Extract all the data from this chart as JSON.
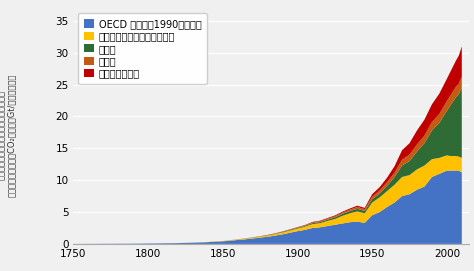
{
  "xlim": [
    1750,
    2015
  ],
  "ylim": [
    0,
    37
  ],
  "yticks": [
    0,
    5,
    10,
    15,
    20,
    25,
    30,
    35
  ],
  "xticks": [
    1750,
    1800,
    1850,
    1900,
    1950,
    2000
  ],
  "legend_labels": [
    "OECD 加盟国（1990年時点）",
    "移行経済国（旧ソ連圏など）",
    "アジア",
    "中南米",
    "中東・アフリカ"
  ],
  "colors": [
    "#4472c4",
    "#ffc000",
    "#2e6b35",
    "#c55a11",
    "#c00000"
  ],
  "bg_color": "#f0f0f0",
  "grid_color": "#ffffff",
  "ylabel_line1": "化石燃料の採掘・燃料・セメント生産、",
  "ylabel_line2": "他の土地利用からのCO₂排出量（Gt/年）　森林と",
  "years": [
    1750,
    1755,
    1760,
    1765,
    1770,
    1775,
    1780,
    1785,
    1790,
    1795,
    1800,
    1805,
    1810,
    1815,
    1820,
    1825,
    1830,
    1835,
    1840,
    1845,
    1850,
    1855,
    1860,
    1865,
    1870,
    1875,
    1880,
    1885,
    1890,
    1895,
    1900,
    1905,
    1910,
    1915,
    1920,
    1925,
    1930,
    1935,
    1940,
    1945,
    1950,
    1955,
    1960,
    1965,
    1970,
    1975,
    1980,
    1985,
    1990,
    1995,
    2000,
    2002,
    2004,
    2006,
    2008,
    2010
  ],
  "oecd": [
    0.01,
    0.01,
    0.02,
    0.02,
    0.03,
    0.03,
    0.04,
    0.04,
    0.05,
    0.06,
    0.07,
    0.08,
    0.1,
    0.11,
    0.13,
    0.16,
    0.19,
    0.23,
    0.28,
    0.34,
    0.4,
    0.5,
    0.62,
    0.72,
    0.85,
    0.98,
    1.12,
    1.3,
    1.5,
    1.75,
    2.0,
    2.2,
    2.5,
    2.6,
    2.8,
    3.0,
    3.2,
    3.4,
    3.5,
    3.3,
    4.5,
    5.0,
    5.8,
    6.5,
    7.5,
    7.8,
    8.5,
    9.0,
    10.5,
    11.0,
    11.5,
    11.5,
    11.5,
    11.5,
    11.5,
    11.2
  ],
  "transition": [
    0.0,
    0.0,
    0.0,
    0.0,
    0.0,
    0.0,
    0.0,
    0.0,
    0.0,
    0.0,
    0.0,
    0.0,
    0.0,
    0.01,
    0.01,
    0.02,
    0.02,
    0.03,
    0.04,
    0.04,
    0.05,
    0.06,
    0.08,
    0.1,
    0.12,
    0.16,
    0.2,
    0.25,
    0.3,
    0.35,
    0.4,
    0.5,
    0.6,
    0.65,
    0.8,
    0.9,
    1.2,
    1.4,
    1.6,
    1.5,
    2.0,
    2.3,
    2.5,
    2.8,
    3.0,
    3.0,
    3.2,
    3.3,
    2.8,
    2.5,
    2.4,
    2.3,
    2.3,
    2.3,
    2.2,
    2.3
  ],
  "asia": [
    0.0,
    0.0,
    0.0,
    0.0,
    0.0,
    0.0,
    0.0,
    0.0,
    0.0,
    0.0,
    0.0,
    0.0,
    0.0,
    0.0,
    0.0,
    0.0,
    0.0,
    0.0,
    0.0,
    0.01,
    0.01,
    0.01,
    0.02,
    0.02,
    0.03,
    0.04,
    0.05,
    0.06,
    0.08,
    0.09,
    0.1,
    0.12,
    0.15,
    0.17,
    0.2,
    0.25,
    0.3,
    0.35,
    0.4,
    0.38,
    0.5,
    0.6,
    0.8,
    1.2,
    1.8,
    2.2,
    2.8,
    3.5,
    4.5,
    5.5,
    7.0,
    7.8,
    8.5,
    9.2,
    9.8,
    11.0
  ],
  "latam": [
    0.0,
    0.0,
    0.0,
    0.0,
    0.0,
    0.0,
    0.0,
    0.0,
    0.0,
    0.0,
    0.0,
    0.0,
    0.0,
    0.0,
    0.0,
    0.0,
    0.0,
    0.0,
    0.0,
    0.0,
    0.0,
    0.01,
    0.01,
    0.01,
    0.02,
    0.02,
    0.03,
    0.04,
    0.05,
    0.06,
    0.08,
    0.09,
    0.12,
    0.13,
    0.15,
    0.18,
    0.2,
    0.23,
    0.3,
    0.28,
    0.4,
    0.5,
    0.6,
    0.7,
    0.9,
    1.0,
    1.1,
    1.2,
    1.3,
    1.4,
    1.5,
    1.55,
    1.58,
    1.62,
    1.65,
    1.7
  ],
  "mideast": [
    0.0,
    0.0,
    0.0,
    0.0,
    0.0,
    0.0,
    0.0,
    0.0,
    0.0,
    0.0,
    0.0,
    0.0,
    0.0,
    0.0,
    0.0,
    0.0,
    0.0,
    0.0,
    0.0,
    0.0,
    0.0,
    0.0,
    0.0,
    0.01,
    0.01,
    0.01,
    0.02,
    0.02,
    0.03,
    0.04,
    0.05,
    0.06,
    0.08,
    0.09,
    0.1,
    0.13,
    0.15,
    0.17,
    0.2,
    0.2,
    0.4,
    0.5,
    0.7,
    1.0,
    1.5,
    1.8,
    2.2,
    2.5,
    2.8,
    3.2,
    3.5,
    3.7,
    3.9,
    4.1,
    4.4,
    4.8
  ],
  "legend_fontsize": 7.0,
  "tick_fontsize": 7.5,
  "ylabel_fontsize": 6.0
}
